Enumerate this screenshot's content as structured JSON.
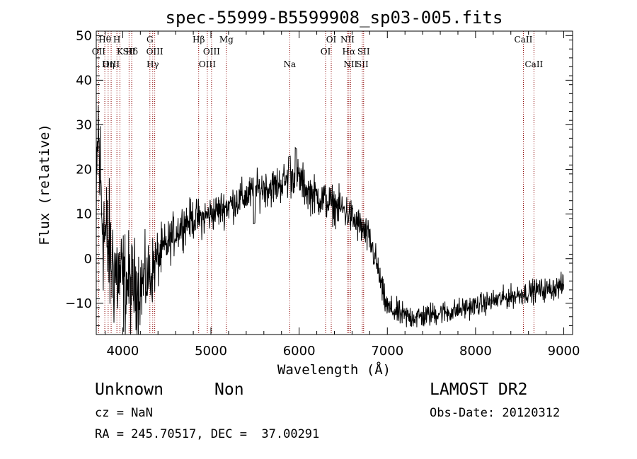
{
  "chart_data": {
    "type": "line",
    "title": "spec-55999-B5599908_sp03-005.fits",
    "xlabel": "Wavelength (Å)",
    "ylabel": "Flux (relative)",
    "xlim": [
      3700,
      9100
    ],
    "ylim": [
      -17,
      51
    ],
    "xticks": [
      4000,
      5000,
      6000,
      7000,
      8000,
      9000
    ],
    "yticks": [
      -10,
      0,
      10,
      20,
      30,
      40,
      50
    ],
    "grid": false,
    "series": [
      {
        "color": "#000000",
        "anchors": {
          "x": [
            3700,
            3720,
            3740,
            3760,
            3780,
            3800,
            3830,
            3860,
            3900,
            3950,
            4000,
            4100,
            4200,
            4300,
            4400,
            4500,
            4600,
            4700,
            4800,
            4900,
            5000,
            5100,
            5200,
            5300,
            5400,
            5500,
            5600,
            5700,
            5800,
            5900,
            5950,
            6000,
            6100,
            6200,
            6300,
            6400,
            6500,
            6560,
            6600,
            6700,
            6800,
            6850,
            6900,
            6950,
            7000,
            7100,
            7200,
            7300,
            7400,
            7500,
            7600,
            7700,
            7800,
            7900,
            8000,
            8100,
            8200,
            8300,
            8400,
            8500,
            8600,
            8700,
            8800,
            8900,
            9000
          ],
          "y": [
            5,
            30,
            20,
            12,
            8,
            5,
            3,
            0,
            -2,
            -4,
            -5,
            -6,
            -6,
            -4,
            0,
            3,
            6,
            8,
            9,
            9,
            10,
            11,
            12,
            13,
            14,
            15,
            16,
            16,
            17,
            18,
            19,
            18,
            15,
            14,
            13,
            12,
            11,
            10,
            9,
            7,
            4,
            1,
            -3,
            -8,
            -11,
            -12,
            -13,
            -13,
            -13,
            -12.5,
            -12,
            -12,
            -11.5,
            -11,
            -10.5,
            -10,
            -9.5,
            -9,
            -8.5,
            -8,
            -7.5,
            -7,
            -7,
            -6.5,
            -6
          ]
        },
        "noise_anchors": {
          "x": [
            3700,
            3800,
            4000,
            4300,
            4500,
            5000,
            6000,
            6800,
            7000,
            8000,
            9000
          ],
          "y": [
            9,
            8,
            6,
            4,
            2.5,
            2,
            2.2,
            2,
            1.5,
            1.2,
            1.3
          ]
        }
      }
    ],
    "lines_top": [
      {
        "wave": 3797,
        "label": "Hθ"
      },
      {
        "wave": 3934,
        "label": "H"
      },
      {
        "wave": 3968,
        "label": "K"
      },
      {
        "wave": 4102,
        "label": "Hδ"
      },
      {
        "wave": 4308,
        "label": "G"
      },
      {
        "wave": 4363,
        "label": "OIII"
      },
      {
        "wave": 4861,
        "label": "Hβ"
      },
      {
        "wave": 4959,
        "label": "OIII"
      },
      {
        "wave": 5007,
        "label": "OIII"
      },
      {
        "wave": 5175,
        "label": "Mg"
      },
      {
        "wave": 5893,
        "label": "Na"
      },
      {
        "wave": 6300,
        "label": "OI"
      },
      {
        "wave": 6364,
        "label": "OI"
      },
      {
        "wave": 6548,
        "label": "NII"
      },
      {
        "wave": 6563,
        "label": "Hα"
      },
      {
        "wave": 6583,
        "label": "NII"
      },
      {
        "wave": 6716,
        "label": "SII"
      },
      {
        "wave": 6731,
        "label": "SII"
      },
      {
        "wave": 8542,
        "label": "CaII"
      },
      {
        "wave": 8662,
        "label": "CaII"
      },
      {
        "wave": 3727,
        "label": "OII"
      },
      {
        "wave": 3835,
        "label": "Hη"
      },
      {
        "wave": 3869,
        "label": "OIII"
      },
      {
        "wave": 4072,
        "label": "SII"
      },
      {
        "wave": 4340,
        "label": "Hγ"
      }
    ],
    "line_color": "#8b0000"
  },
  "info": {
    "class": "Unknown",
    "subclass": "Non",
    "survey": "LAMOST DR2",
    "cz": "cz = NaN",
    "obsdate": "Obs-Date: 20120312",
    "radec": "RA = 245.70517, DEC =  37.00291"
  }
}
